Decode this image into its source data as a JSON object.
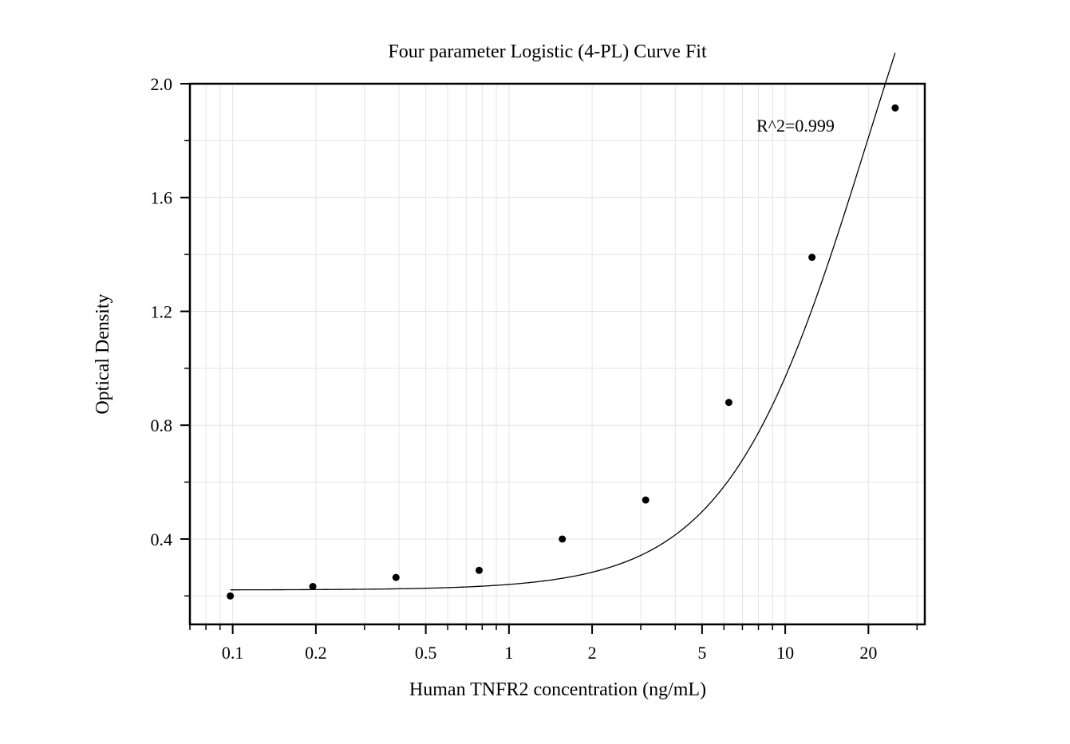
{
  "chart_data": {
    "type": "scatter",
    "title": "Four parameter Logistic (4-PL) Curve Fit",
    "xlabel": "Human TNFR2 concentration (ng/mL)",
    "ylabel": "Optical Density",
    "xscale": "log",
    "xlim": [
      0.07,
      32
    ],
    "ylim": [
      0.1,
      2.0
    ],
    "grid": true,
    "x_ticks": [
      {
        "value": 0.1,
        "label": "0.1"
      },
      {
        "value": 0.2,
        "label": "0.2"
      },
      {
        "value": 0.5,
        "label": "0.5"
      },
      {
        "value": 1,
        "label": "1"
      },
      {
        "value": 2,
        "label": "2"
      },
      {
        "value": 5,
        "label": "5"
      },
      {
        "value": 10,
        "label": "10"
      },
      {
        "value": 20,
        "label": "20"
      }
    ],
    "y_ticks": [
      {
        "value": 0.4,
        "label": "0.4"
      },
      {
        "value": 0.8,
        "label": "0.8"
      },
      {
        "value": 1.2,
        "label": "1.2"
      },
      {
        "value": 1.6,
        "label": "1.6"
      },
      {
        "value": 2.0,
        "label": "2.0"
      }
    ],
    "series": [
      {
        "kind": "points",
        "x": [
          0.098,
          0.195,
          0.39,
          0.78,
          1.56,
          3.125,
          6.25,
          12.5,
          25
        ],
        "y": [
          0.2,
          0.233,
          0.265,
          0.29,
          0.4,
          0.537,
          0.88,
          1.39,
          1.915
        ],
        "color": "#000000"
      },
      {
        "kind": "fit",
        "model": "4PL",
        "params": {
          "A": 0.221,
          "B": 1.7,
          "C": 20,
          "D": 3.4
        },
        "x_range": [
          0.098,
          25
        ],
        "color": "#000000"
      }
    ],
    "annotations": [
      {
        "text": "R^2=0.999"
      }
    ]
  }
}
